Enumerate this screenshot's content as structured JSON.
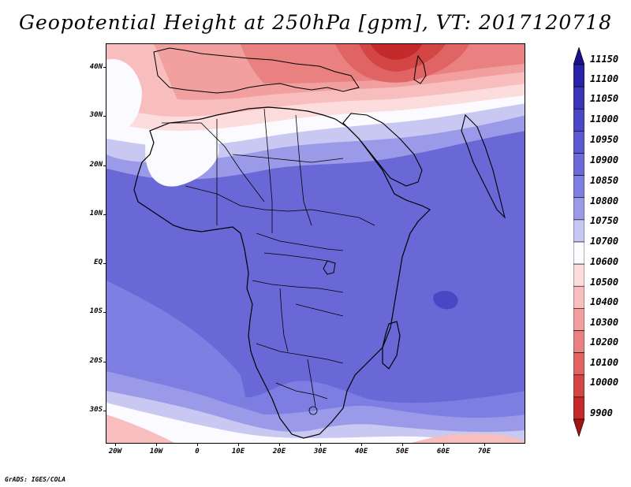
{
  "title": "Geopotential Height at 250hPa [gpm], VT: 2017120718",
  "credit": "GrADS: IGES/COLA",
  "map": {
    "lat_labels": [
      "40N",
      "30N",
      "20N",
      "10N",
      "EQ",
      "10S",
      "20S",
      "30S"
    ],
    "lon_labels": [
      "20W",
      "10W",
      "0",
      "10E",
      "20E",
      "30E",
      "40E",
      "50E",
      "60E",
      "70E"
    ],
    "region": "Africa / Middle East / Western Indian Ocean",
    "extent": {
      "lon": [
        -22,
        80
      ],
      "lat": [
        -37,
        45
      ]
    }
  },
  "colorbar": {
    "levels": [
      "11150",
      "11100",
      "11050",
      "11000",
      "10950",
      "10900",
      "10850",
      "10800",
      "10750",
      "10700",
      "10600",
      "10500",
      "10400",
      "10300",
      "10200",
      "10100",
      "10000",
      "9900"
    ],
    "colors": [
      "#18128a",
      "#2a22a6",
      "#3b34b6",
      "#4b46c4",
      "#5c58cf",
      "#6c6ad9",
      "#7e7ee2",
      "#9a9ae9",
      "#c8c8f3",
      "#fbfbff",
      "#fcdcdc",
      "#f8bdbd",
      "#f19f9f",
      "#e98181",
      "#e06464",
      "#d44646",
      "#c42a2a",
      "#a41212"
    ]
  }
}
